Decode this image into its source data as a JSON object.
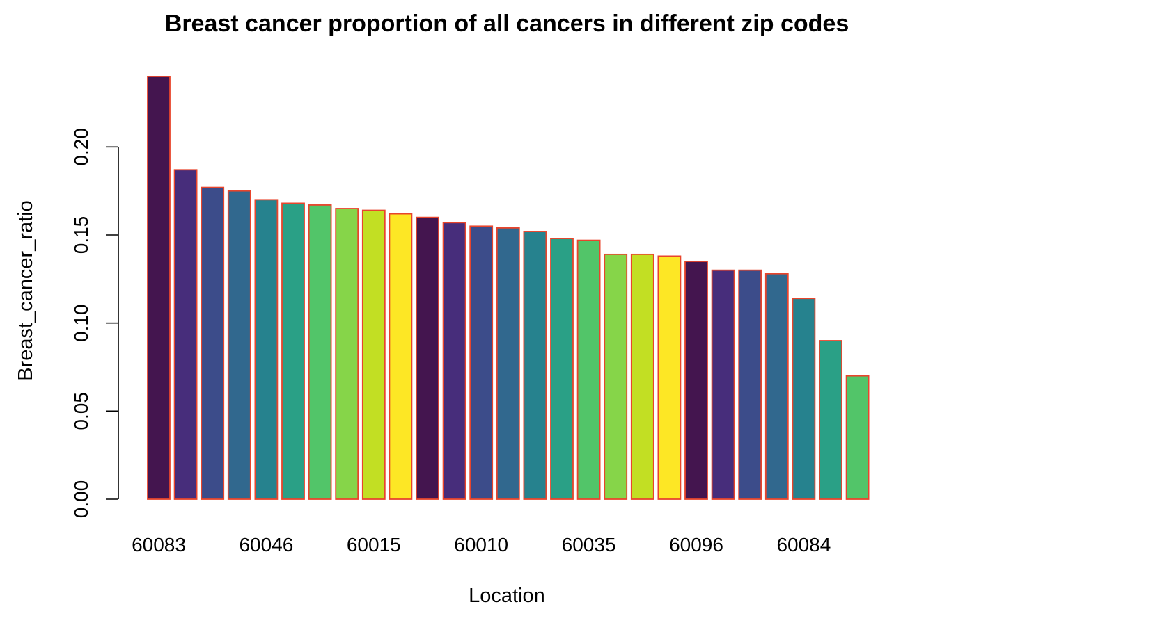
{
  "chart_data": {
    "type": "bar",
    "title": "Breast cancer proportion of all cancers in different zip codes",
    "xlabel": "Location",
    "ylabel": "Breast_cancer_ratio",
    "ylim": [
      0,
      0.24
    ],
    "yticks": [
      "0.00",
      "0.05",
      "0.10",
      "0.15",
      "0.20"
    ],
    "ytick_values": [
      0,
      0.05,
      0.1,
      0.15,
      0.2
    ],
    "visible_category_labels": [
      "60083",
      "60046",
      "60015",
      "60010",
      "60035",
      "60096",
      "60084"
    ],
    "values": [
      0.24,
      0.187,
      0.177,
      0.175,
      0.17,
      0.168,
      0.167,
      0.165,
      0.164,
      0.162,
      0.16,
      0.157,
      0.155,
      0.154,
      0.152,
      0.148,
      0.147,
      0.139,
      0.139,
      0.138,
      0.135,
      0.13,
      0.13,
      0.128,
      0.114,
      0.09,
      0.07
    ],
    "bar_colors": [
      "#44154f",
      "#472d7b",
      "#3c4c8a",
      "#31688e",
      "#26828e",
      "#2aa086",
      "#52c569",
      "#86d549",
      "#c2df23",
      "#fde725",
      "#44154f",
      "#472d7b",
      "#3c4c8a",
      "#31688e",
      "#26828e",
      "#2aa086",
      "#52c569",
      "#86d549",
      "#c2df23",
      "#fde725",
      "#44154f",
      "#472d7b",
      "#3c4c8a",
      "#31688e",
      "#26828e",
      "#2aa086",
      "#52c569"
    ],
    "border_color": "#e8452c",
    "grid": false,
    "legend": "none"
  }
}
